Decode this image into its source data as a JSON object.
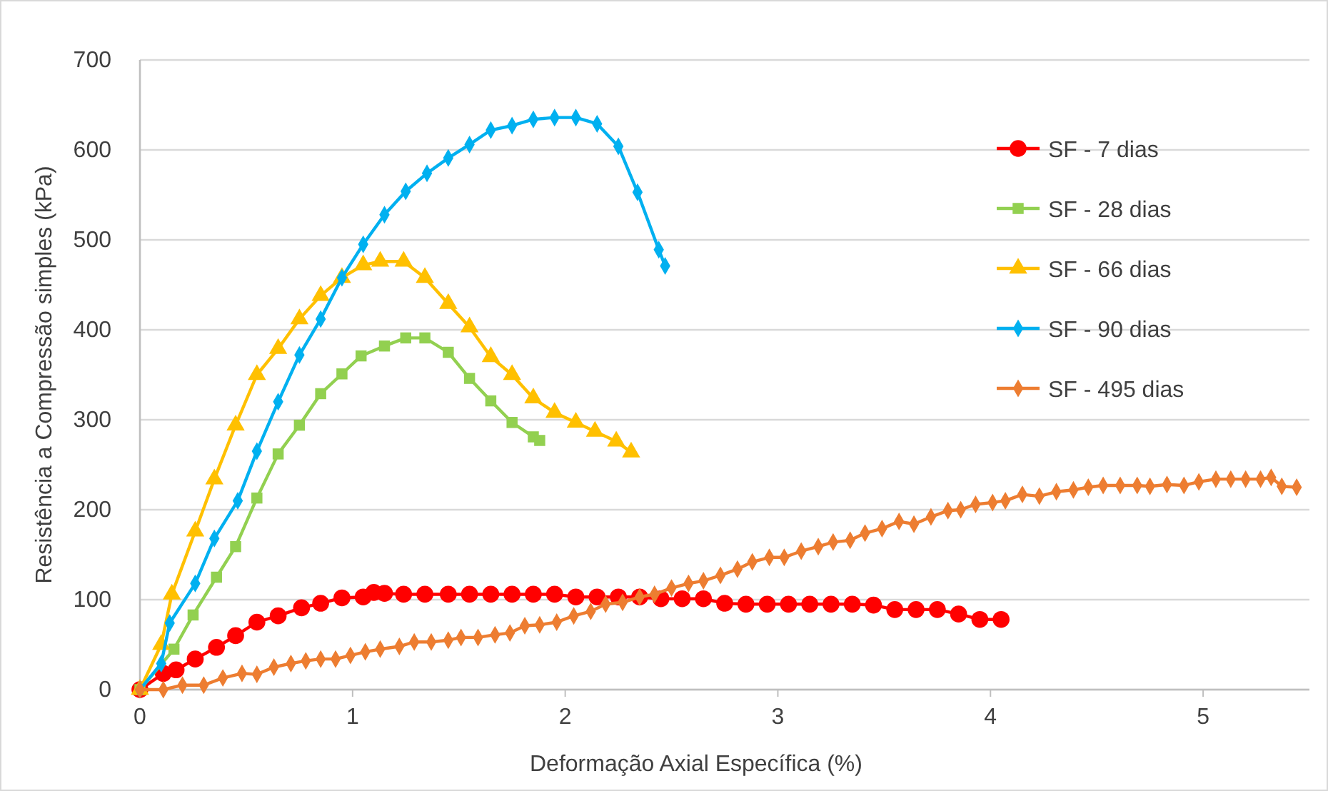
{
  "chart_data": {
    "type": "line",
    "xlabel": "Deformação Axial Específica  (%)",
    "ylabel": "Resistência a Compressão simples (kPa)",
    "xlim": [
      0,
      5.5
    ],
    "xticks": [
      0,
      1,
      2,
      3,
      4,
      5
    ],
    "ylim": [
      0,
      700
    ],
    "yticks": [
      0,
      100,
      200,
      300,
      400,
      500,
      600,
      700
    ],
    "grid": "y",
    "legend": "right",
    "line_style": "solid",
    "series": [
      {
        "name": "SF - 7 dias",
        "color": "#ff0000",
        "marker": "circle",
        "x": [
          0,
          0.11,
          0.17,
          0.26,
          0.36,
          0.45,
          0.55,
          0.65,
          0.76,
          0.85,
          0.95,
          1.05,
          1.1,
          1.15,
          1.24,
          1.34,
          1.45,
          1.55,
          1.65,
          1.75,
          1.85,
          1.95,
          2.05,
          2.15,
          2.25,
          2.35,
          2.45,
          2.55,
          2.65,
          2.75,
          2.85,
          2.95,
          3.05,
          3.15,
          3.25,
          3.35,
          3.45,
          3.55,
          3.65,
          3.75,
          3.85,
          3.95,
          4.05
        ],
        "values": [
          0,
          18,
          22,
          34,
          47,
          60,
          75,
          82,
          91,
          96,
          102,
          103,
          108,
          107,
          106,
          106,
          106,
          106,
          106,
          106,
          106,
          106,
          103,
          103,
          103,
          103,
          101,
          101,
          101,
          96,
          95,
          95,
          95,
          95,
          95,
          95,
          94,
          89,
          89,
          89,
          84,
          78,
          78
        ]
      },
      {
        "name": "SF - 28 dias",
        "color": "#92d050",
        "marker": "square",
        "x": [
          0,
          0.16,
          0.25,
          0.36,
          0.45,
          0.55,
          0.65,
          0.75,
          0.85,
          0.95,
          1.04,
          1.15,
          1.25,
          1.34,
          1.45,
          1.55,
          1.65,
          1.75,
          1.85,
          1.88
        ],
        "values": [
          0,
          45,
          83,
          125,
          159,
          213,
          262,
          294,
          329,
          351,
          371,
          382,
          391,
          391,
          375,
          346,
          321,
          297,
          281,
          277
        ]
      },
      {
        "name": "SF - 66 dias",
        "color": "#ffc000",
        "marker": "triangle",
        "x": [
          0,
          0.1,
          0.15,
          0.26,
          0.35,
          0.45,
          0.55,
          0.65,
          0.75,
          0.85,
          0.95,
          1.05,
          1.13,
          1.24,
          1.34,
          1.45,
          1.55,
          1.65,
          1.75,
          1.85,
          1.95,
          2.05,
          2.14,
          2.24,
          2.31
        ],
        "values": [
          0,
          50,
          106,
          176,
          234,
          294,
          350,
          379,
          412,
          438,
          458,
          472,
          476,
          476,
          458,
          429,
          403,
          370,
          350,
          324,
          308,
          297,
          287,
          276,
          264
        ]
      },
      {
        "name": "SF - 90 dias",
        "color": "#00b0f0",
        "marker": "diamond",
        "x": [
          0,
          0.1,
          0.14,
          0.26,
          0.35,
          0.46,
          0.55,
          0.65,
          0.75,
          0.85,
          0.95,
          1.05,
          1.15,
          1.25,
          1.35,
          1.45,
          1.55,
          1.65,
          1.75,
          1.85,
          1.95,
          2.05,
          2.15,
          2.25,
          2.34,
          2.44,
          2.47
        ],
        "values": [
          0,
          29,
          74,
          118,
          168,
          210,
          265,
          320,
          372,
          412,
          458,
          495,
          528,
          554,
          574,
          591,
          606,
          622,
          627,
          634,
          636,
          636,
          629,
          604,
          553,
          489,
          471
        ]
      },
      {
        "name": "SF - 495 dias",
        "color": "#ed7d31",
        "marker": "diamond",
        "x": [
          0,
          0.11,
          0.2,
          0.3,
          0.39,
          0.48,
          0.55,
          0.63,
          0.71,
          0.78,
          0.85,
          0.92,
          0.99,
          1.06,
          1.13,
          1.22,
          1.29,
          1.37,
          1.45,
          1.51,
          1.59,
          1.67,
          1.74,
          1.81,
          1.88,
          1.96,
          2.04,
          2.12,
          2.19,
          2.27,
          2.35,
          2.42,
          2.5,
          2.58,
          2.65,
          2.73,
          2.81,
          2.88,
          2.96,
          3.03,
          3.11,
          3.19,
          3.26,
          3.34,
          3.41,
          3.49,
          3.57,
          3.64,
          3.72,
          3.8,
          3.86,
          3.93,
          4.01,
          4.07,
          4.15,
          4.23,
          4.31,
          4.39,
          4.46,
          4.53,
          4.61,
          4.69,
          4.75,
          4.83,
          4.91,
          4.98,
          5.06,
          5.13,
          5.2,
          5.27,
          5.32,
          5.37,
          5.44
        ],
        "values": [
          0,
          0,
          5,
          5,
          13,
          18,
          17,
          25,
          29,
          32,
          34,
          34,
          38,
          42,
          45,
          48,
          53,
          53,
          55,
          58,
          58,
          61,
          63,
          71,
          72,
          75,
          82,
          87,
          95,
          97,
          103,
          106,
          113,
          118,
          121,
          127,
          134,
          142,
          147,
          147,
          154,
          159,
          164,
          166,
          174,
          179,
          187,
          184,
          192,
          199,
          200,
          206,
          208,
          210,
          217,
          215,
          220,
          222,
          225,
          227,
          227,
          227,
          226,
          228,
          227,
          231,
          234,
          234,
          234,
          234,
          236,
          226,
          225
        ]
      }
    ]
  }
}
